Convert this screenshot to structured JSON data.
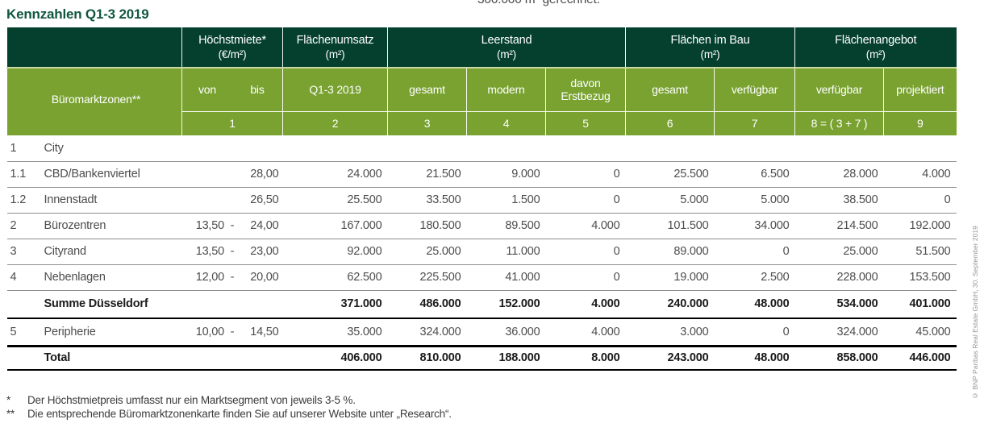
{
  "page": {
    "clipped_text_top": "300.000 m² gerechnet.",
    "title": "Kennzahlen Q1-3 2019",
    "copyright_vertical": "© BNP Paribas Real Estate GmbH, 30. September 2019",
    "footnotes": [
      {
        "marker": "*",
        "text": "Der Höchstmietpreis umfasst nur ein Marktsegment von jeweils 3-5 %."
      },
      {
        "marker": "**",
        "text": "Die entsprechende Büromarktzonenkarte finden Sie auf unserer Website unter „Research“."
      }
    ]
  },
  "table": {
    "row_header_label": "Büromarktzonen**",
    "groups": [
      {
        "label": "Höchstmiete*",
        "unit": "(€/m²)"
      },
      {
        "label": "Flächenumsatz",
        "unit": "(m²)"
      },
      {
        "label": "Leerstand",
        "unit": "(m²)"
      },
      {
        "label": "Flächen im Bau",
        "unit": "(m²)"
      },
      {
        "label": "Flächenangebot",
        "unit": "(m²)"
      }
    ],
    "subheaders": {
      "von": "von",
      "bis": "bis",
      "umsatz": "Q1-3 2019",
      "leer_gesamt": "gesamt",
      "leer_modern": "modern",
      "leer_erstbezug": "davon Erstbezug",
      "bau_gesamt": "gesamt",
      "bau_verfuegbar": "verfügbar",
      "angebot_verfuegbar": "verfügbar",
      "angebot_projektiert": "projektiert"
    },
    "col_numbers": [
      "1",
      "2",
      "3",
      "4",
      "5",
      "6",
      "7",
      "8 = ( 3 + 7 )",
      "9"
    ],
    "rows": [
      {
        "num": "1",
        "name": "City",
        "von": "",
        "bis": "",
        "values": [
          "",
          "",
          "",
          "",
          "",
          "",
          "",
          ""
        ],
        "style": "sep-thin",
        "bold": false
      },
      {
        "num": "1.1",
        "name": "CBD/Bankenviertel",
        "von": "",
        "bis": "28,00",
        "values": [
          "24.000",
          "21.500",
          "9.000",
          "0",
          "25.500",
          "6.500",
          "28.000",
          "4.000"
        ],
        "style": "sep-thin",
        "bold": false
      },
      {
        "num": "1.2",
        "name": "Innenstadt",
        "von": "",
        "bis": "26,50",
        "values": [
          "25.500",
          "33.500",
          "1.500",
          "0",
          "5.000",
          "5.000",
          "38.500",
          "0"
        ],
        "style": "sep-thin",
        "bold": false
      },
      {
        "num": "2",
        "name": "Bürozentren",
        "von": "13,50",
        "bis": "24,00",
        "values": [
          "167.000",
          "180.500",
          "89.500",
          "4.000",
          "101.500",
          "34.000",
          "214.500",
          "192.000"
        ],
        "style": "sep-thin",
        "bold": false
      },
      {
        "num": "3",
        "name": "Cityrand",
        "von": "13,50",
        "bis": "23,00",
        "values": [
          "92.000",
          "25.000",
          "11.000",
          "0",
          "89.000",
          "0",
          "25.000",
          "51.500"
        ],
        "style": "sep-thin",
        "bold": false
      },
      {
        "num": "4",
        "name": "Nebenlagen",
        "von": "12,00",
        "bis": "20,00",
        "values": [
          "62.500",
          "225.500",
          "41.000",
          "0",
          "19.000",
          "2.500",
          "228.000",
          "153.500"
        ],
        "style": "sep-thin",
        "bold": false
      },
      {
        "num": "",
        "name": "Summe Düsseldorf",
        "von": "",
        "bis": "",
        "values": [
          "371.000",
          "486.000",
          "152.000",
          "4.000",
          "240.000",
          "48.000",
          "534.000",
          "401.000"
        ],
        "style": "sep-thick",
        "bold": true
      },
      {
        "num": "5",
        "name": "Peripherie",
        "von": "10,00",
        "bis": "14,50",
        "values": [
          "35.000",
          "324.000",
          "36.000",
          "4.000",
          "3.000",
          "0",
          "324.000",
          "45.000"
        ],
        "style": "sep-heavy",
        "bold": false
      },
      {
        "num": "",
        "name": "Total",
        "von": "",
        "bis": "",
        "values": [
          "406.000",
          "810.000",
          "188.000",
          "8.000",
          "243.000",
          "48.000",
          "858.000",
          "446.000"
        ],
        "style": "sep-end",
        "bold": true
      }
    ]
  }
}
